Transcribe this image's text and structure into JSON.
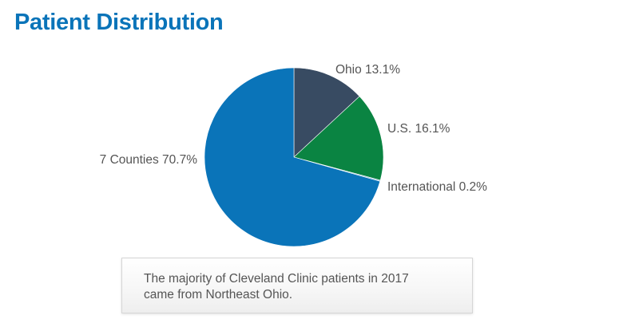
{
  "title": "Patient Distribution",
  "chart_data": {
    "type": "pie",
    "slices": [
      {
        "label": "Ohio",
        "display": "13.1%",
        "value": 13.1,
        "color": "#384b62"
      },
      {
        "label": "U.S.",
        "display": "16.1%",
        "value": 16.1,
        "color": "#0a8442"
      },
      {
        "label": "International",
        "display": "0.2%",
        "value": 0.2,
        "color": "#8fbcd6"
      },
      {
        "label": "7 Counties",
        "display": "70.7%",
        "value": 70.7,
        "color": "#0a74b9"
      }
    ]
  },
  "note": {
    "line1": "The majority of Cleveland Clinic patients in 2017",
    "line2": "came from Northeast Ohio."
  }
}
